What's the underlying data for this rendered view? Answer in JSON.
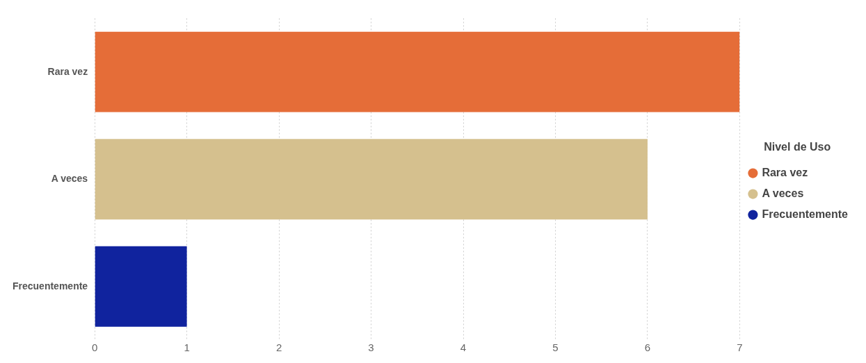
{
  "chart_data": {
    "type": "bar",
    "orientation": "horizontal",
    "legend_title": "Nivel de Uso",
    "categories": [
      "Rara vez",
      "A veces",
      "Frecuentemente"
    ],
    "series": [
      {
        "name": "Rara vez",
        "color": "#e56d38",
        "values": [
          7,
          null,
          null
        ]
      },
      {
        "name": "A veces",
        "color": "#d5c08e",
        "values": [
          null,
          6,
          null
        ]
      },
      {
        "name": "Frecuentemente",
        "color": "#10239e",
        "values": [
          null,
          null,
          1
        ]
      }
    ],
    "xlim": [
      0,
      7
    ],
    "xticks": [
      0,
      1,
      2,
      3,
      4,
      5,
      6,
      7
    ],
    "grid": "x",
    "legend": "right"
  }
}
